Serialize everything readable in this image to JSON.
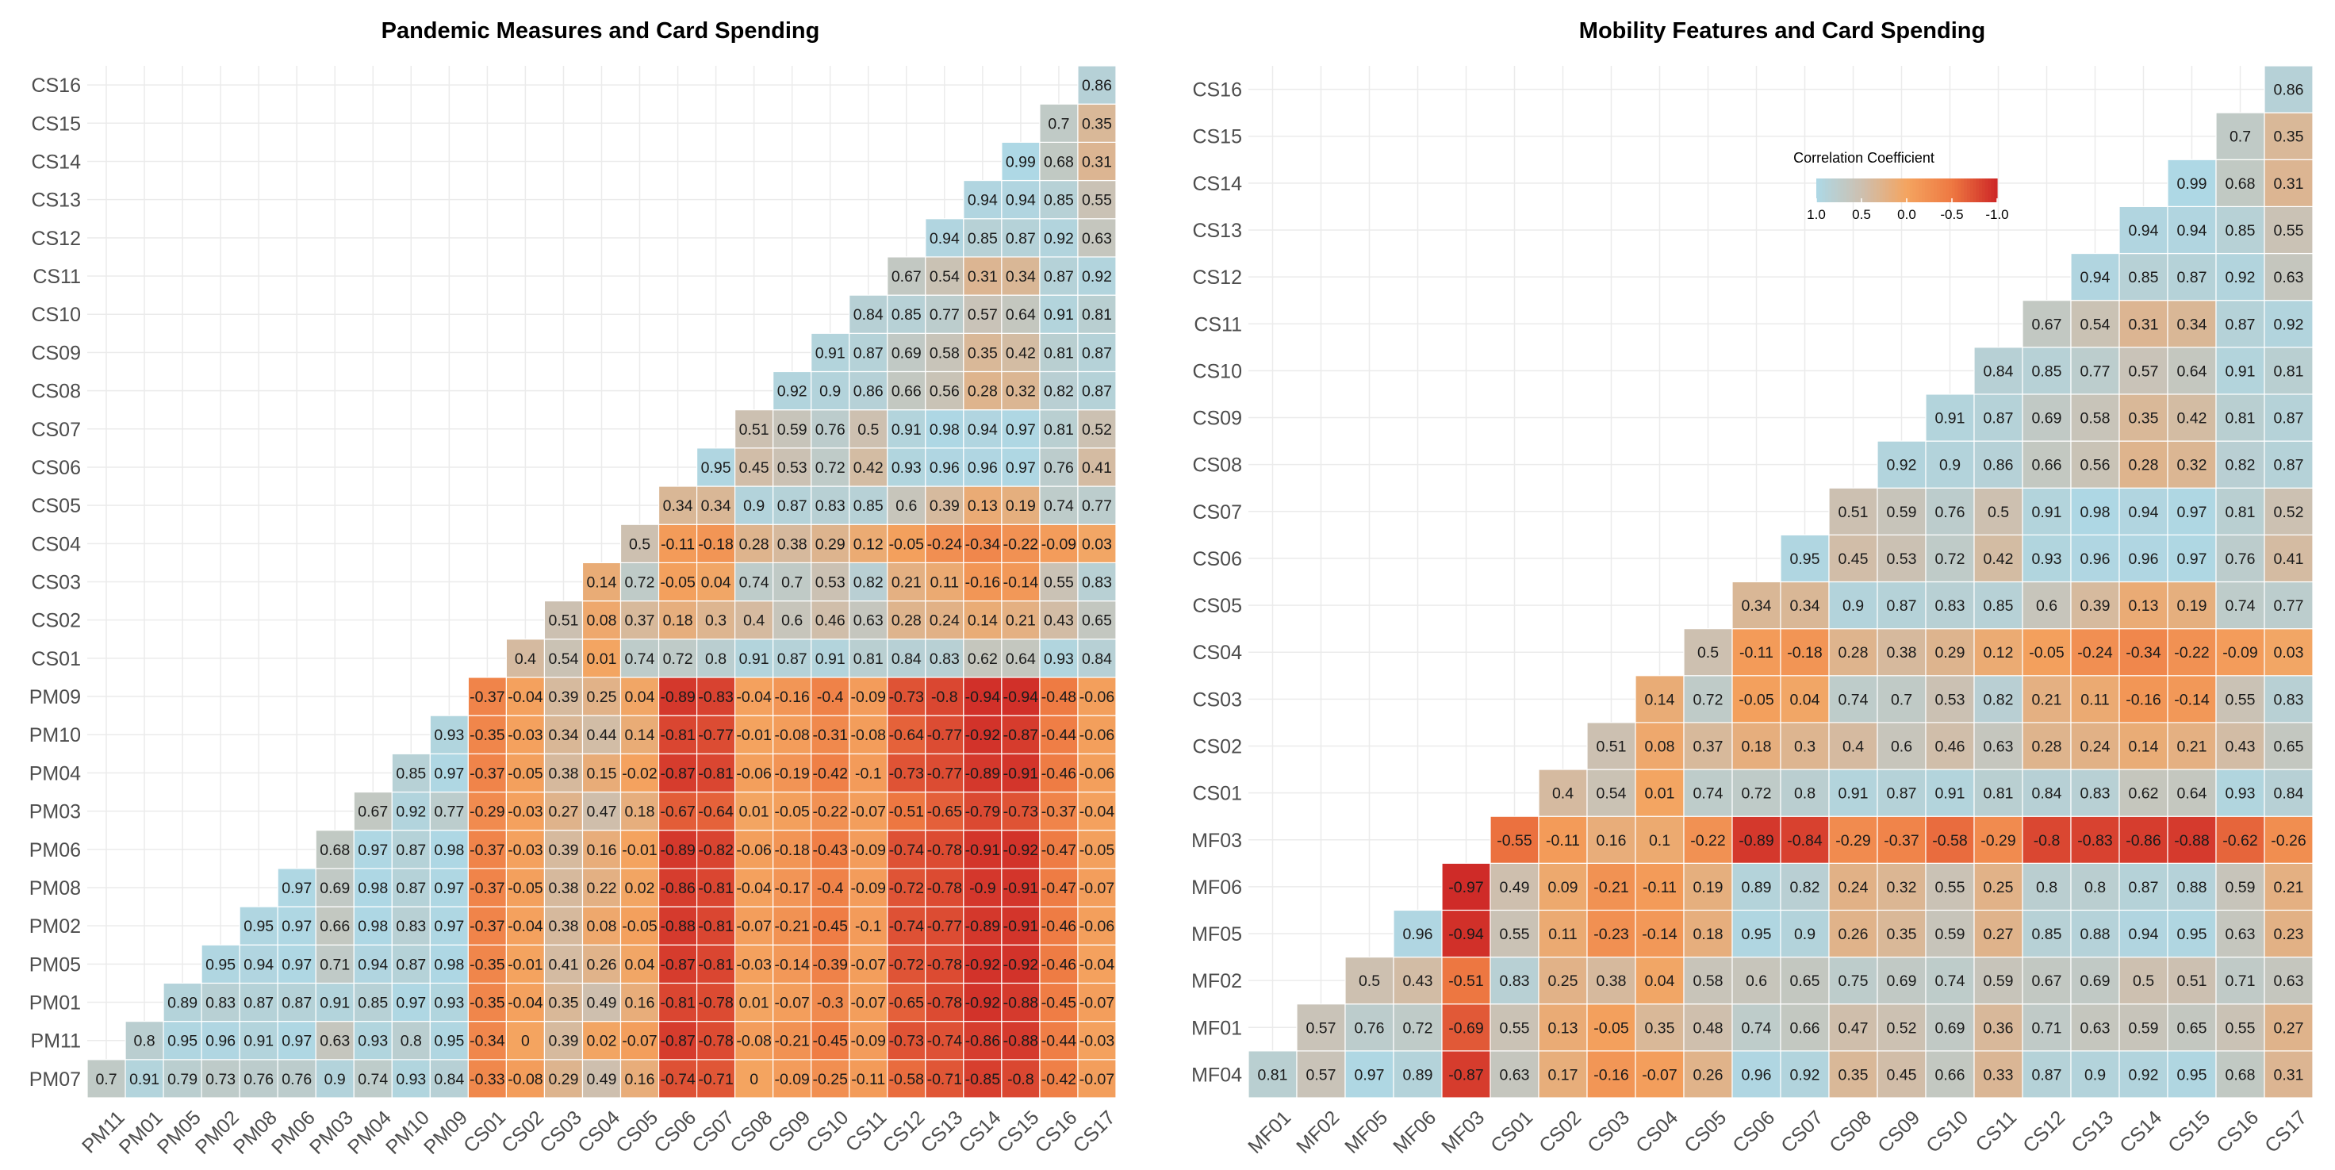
{
  "chart_data": [
    {
      "type": "heatmap",
      "title": "Pandemic Measures and Card Spending",
      "row_labels_bottom_to_top": [
        "PM07",
        "PM11",
        "PM01",
        "PM05",
        "PM02",
        "PM08",
        "PM06",
        "PM03",
        "PM04",
        "PM10",
        "PM09",
        "CS01",
        "CS02",
        "CS03",
        "CS04",
        "CS05",
        "CS06",
        "CS07",
        "CS08",
        "CS09",
        "CS10",
        "CS11",
        "CS12",
        "CS13",
        "CS14",
        "CS15",
        "CS16"
      ],
      "col_labels": [
        "PM11",
        "PM01",
        "PM05",
        "PM02",
        "PM08",
        "PM06",
        "PM03",
        "PM04",
        "PM10",
        "PM09",
        "CS01",
        "CS02",
        "CS03",
        "CS04",
        "CS05",
        "CS06",
        "CS07",
        "CS08",
        "CS09",
        "CS10",
        "CS11",
        "CS12",
        "CS13",
        "CS14",
        "CS15",
        "CS16",
        "CS17"
      ],
      "rows_bottom_to_top": [
        [
          "0.7",
          "0.91",
          "0.79",
          "0.73",
          "0.76",
          "0.76",
          "0.9",
          "0.74",
          "0.93",
          "0.84",
          "-0.33",
          "-0.08",
          "0.29",
          "0.49",
          "0.16",
          "-0.74",
          "-0.71",
          "0",
          "-0.09",
          "-0.25",
          "-0.11",
          "-0.58",
          "-0.71",
          "-0.85",
          "-0.8",
          "-0.42",
          "-0.07"
        ],
        [
          "0.8",
          "0.95",
          "0.96",
          "0.91",
          "0.97",
          "0.63",
          "0.93",
          "0.8",
          "0.95",
          "-0.34",
          "0",
          "0.39",
          "0.02",
          "-0.07",
          "-0.87",
          "-0.78",
          "-0.08",
          "-0.21",
          "-0.45",
          "-0.09",
          "-0.73",
          "-0.74",
          "-0.86",
          "-0.88",
          "-0.44",
          "-0.03"
        ],
        [
          "0.89",
          "0.83",
          "0.87",
          "0.87",
          "0.91",
          "0.85",
          "0.97",
          "0.93",
          "-0.35",
          "-0.04",
          "0.35",
          "0.49",
          "0.16",
          "-0.81",
          "-0.78",
          "0.01",
          "-0.07",
          "-0.3",
          "-0.07",
          "-0.65",
          "-0.78",
          "-0.92",
          "-0.88",
          "-0.45",
          "-0.07"
        ],
        [
          "0.95",
          "0.94",
          "0.97",
          "0.71",
          "0.94",
          "0.87",
          "0.98",
          "-0.35",
          "-0.01",
          "0.41",
          "0.26",
          "0.04",
          "-0.87",
          "-0.81",
          "-0.03",
          "-0.14",
          "-0.39",
          "-0.07",
          "-0.72",
          "-0.78",
          "-0.92",
          "-0.92",
          "-0.46",
          "-0.04"
        ],
        [
          "0.95",
          "0.97",
          "0.66",
          "0.98",
          "0.83",
          "0.97",
          "-0.37",
          "-0.04",
          "0.38",
          "0.08",
          "-0.05",
          "-0.88",
          "-0.81",
          "-0.07",
          "-0.21",
          "-0.45",
          "-0.1",
          "-0.74",
          "-0.77",
          "-0.89",
          "-0.91",
          "-0.46",
          "-0.06"
        ],
        [
          "0.97",
          "0.69",
          "0.98",
          "0.87",
          "0.97",
          "-0.37",
          "-0.05",
          "0.38",
          "0.22",
          "0.02",
          "-0.86",
          "-0.81",
          "-0.04",
          "-0.17",
          "-0.4",
          "-0.09",
          "-0.72",
          "-0.78",
          "-0.9",
          "-0.91",
          "-0.47",
          "-0.07"
        ],
        [
          "0.68",
          "0.97",
          "0.87",
          "0.98",
          "-0.37",
          "-0.03",
          "0.39",
          "0.16",
          "-0.01",
          "-0.89",
          "-0.82",
          "-0.06",
          "-0.18",
          "-0.43",
          "-0.09",
          "-0.74",
          "-0.78",
          "-0.91",
          "-0.92",
          "-0.47",
          "-0.05"
        ],
        [
          "0.67",
          "0.92",
          "0.77",
          "-0.29",
          "-0.03",
          "0.27",
          "0.47",
          "0.18",
          "-0.67",
          "-0.64",
          "0.01",
          "-0.05",
          "-0.22",
          "-0.07",
          "-0.51",
          "-0.65",
          "-0.79",
          "-0.73",
          "-0.37",
          "-0.04"
        ],
        [
          "0.85",
          "0.97",
          "-0.37",
          "-0.05",
          "0.38",
          "0.15",
          "-0.02",
          "-0.87",
          "-0.81",
          "-0.06",
          "-0.19",
          "-0.42",
          "-0.1",
          "-0.73",
          "-0.77",
          "-0.89",
          "-0.91",
          "-0.46",
          "-0.06"
        ],
        [
          "0.93",
          "-0.35",
          "-0.03",
          "0.34",
          "0.44",
          "0.14",
          "-0.81",
          "-0.77",
          "-0.01",
          "-0.08",
          "-0.31",
          "-0.08",
          "-0.64",
          "-0.77",
          "-0.92",
          "-0.87",
          "-0.44",
          "-0.06"
        ],
        [
          "-0.37",
          "-0.04",
          "0.39",
          "0.25",
          "0.04",
          "-0.89",
          "-0.83",
          "-0.04",
          "-0.16",
          "-0.4",
          "-0.09",
          "-0.73",
          "-0.8",
          "-0.94",
          "-0.94",
          "-0.48",
          "-0.06"
        ],
        [
          "0.4",
          "0.54",
          "0.01",
          "0.74",
          "0.72",
          "0.8",
          "0.91",
          "0.87",
          "0.91",
          "0.81",
          "0.84",
          "0.83",
          "0.62",
          "0.64",
          "0.93",
          "0.84"
        ],
        [
          "0.51",
          "0.08",
          "0.37",
          "0.18",
          "0.3",
          "0.4",
          "0.6",
          "0.46",
          "0.63",
          "0.28",
          "0.24",
          "0.14",
          "0.21",
          "0.43",
          "0.65"
        ],
        [
          "0.14",
          "0.72",
          "-0.05",
          "0.04",
          "0.74",
          "0.7",
          "0.53",
          "0.82",
          "0.21",
          "0.11",
          "-0.16",
          "-0.14",
          "0.55",
          "0.83"
        ],
        [
          "0.5",
          "-0.11",
          "-0.18",
          "0.28",
          "0.38",
          "0.29",
          "0.12",
          "-0.05",
          "-0.24",
          "-0.34",
          "-0.22",
          "-0.09",
          "0.03"
        ],
        [
          "0.34",
          "0.34",
          "0.9",
          "0.87",
          "0.83",
          "0.85",
          "0.6",
          "0.39",
          "0.13",
          "0.19",
          "0.74",
          "0.77"
        ],
        [
          "0.95",
          "0.45",
          "0.53",
          "0.72",
          "0.42",
          "0.93",
          "0.96",
          "0.96",
          "0.97",
          "0.76",
          "0.41"
        ],
        [
          "0.51",
          "0.59",
          "0.76",
          "0.5",
          "0.91",
          "0.98",
          "0.94",
          "0.97",
          "0.81",
          "0.52"
        ],
        [
          "0.92",
          "0.9",
          "0.86",
          "0.66",
          "0.56",
          "0.28",
          "0.32",
          "0.82",
          "0.87"
        ],
        [
          "0.91",
          "0.87",
          "0.69",
          "0.58",
          "0.35",
          "0.42",
          "0.81",
          "0.87"
        ],
        [
          "0.84",
          "0.85",
          "0.77",
          "0.57",
          "0.64",
          "0.91",
          "0.81"
        ],
        [
          "0.67",
          "0.54",
          "0.31",
          "0.34",
          "0.87",
          "0.92"
        ],
        [
          "0.94",
          "0.85",
          "0.87",
          "0.92",
          "0.63"
        ],
        [
          "0.94",
          "0.94",
          "0.85",
          "0.55"
        ],
        [
          "0.99",
          "0.68",
          "0.31"
        ],
        [
          "0.7",
          "0.35"
        ],
        [
          "0.86"
        ]
      ]
    },
    {
      "type": "heatmap",
      "title": "Mobility Features and Card Spending",
      "row_labels_bottom_to_top": [
        "MF04",
        "MF01",
        "MF02",
        "MF05",
        "MF06",
        "MF03",
        "CS01",
        "CS02",
        "CS03",
        "CS04",
        "CS05",
        "CS06",
        "CS07",
        "CS08",
        "CS09",
        "CS10",
        "CS11",
        "CS12",
        "CS13",
        "CS14",
        "CS15",
        "CS16"
      ],
      "col_labels": [
        "MF01",
        "MF02",
        "MF05",
        "MF06",
        "MF03",
        "CS01",
        "CS02",
        "CS03",
        "CS04",
        "CS05",
        "CS06",
        "CS07",
        "CS08",
        "CS09",
        "CS10",
        "CS11",
        "CS12",
        "CS13",
        "CS14",
        "CS15",
        "CS16",
        "CS17"
      ],
      "rows_bottom_to_top": [
        [
          "0.81",
          "0.57",
          "0.97",
          "0.89",
          "-0.87",
          "0.63",
          "0.17",
          "-0.16",
          "-0.07",
          "0.26",
          "0.96",
          "0.92",
          "0.35",
          "0.45",
          "0.66",
          "0.33",
          "0.87",
          "0.9",
          "0.92",
          "0.95",
          "0.68",
          "0.31"
        ],
        [
          "0.57",
          "0.76",
          "0.72",
          "-0.69",
          "0.55",
          "0.13",
          "-0.05",
          "0.35",
          "0.48",
          "0.74",
          "0.66",
          "0.47",
          "0.52",
          "0.69",
          "0.36",
          "0.71",
          "0.63",
          "0.59",
          "0.65",
          "0.55",
          "0.27"
        ],
        [
          "0.5",
          "0.43",
          "-0.51",
          "0.83",
          "0.25",
          "0.38",
          "0.04",
          "0.58",
          "0.6",
          "0.65",
          "0.75",
          "0.69",
          "0.74",
          "0.59",
          "0.67",
          "0.69",
          "0.5",
          "0.51",
          "0.71",
          "0.63"
        ],
        [
          "0.96",
          "-0.94",
          "0.55",
          "0.11",
          "-0.23",
          "-0.14",
          "0.18",
          "0.95",
          "0.9",
          "0.26",
          "0.35",
          "0.59",
          "0.27",
          "0.85",
          "0.88",
          "0.94",
          "0.95",
          "0.63",
          "0.23"
        ],
        [
          "-0.97",
          "0.49",
          "0.09",
          "-0.21",
          "-0.11",
          "0.19",
          "0.89",
          "0.82",
          "0.24",
          "0.32",
          "0.55",
          "0.25",
          "0.8",
          "0.8",
          "0.87",
          "0.88",
          "0.59",
          "0.21"
        ],
        [
          "-0.55",
          "-0.11",
          "0.16",
          "0.1",
          "-0.22",
          "-0.89",
          "-0.84",
          "-0.29",
          "-0.37",
          "-0.58",
          "-0.29",
          "-0.8",
          "-0.83",
          "-0.86",
          "-0.88",
          "-0.62",
          "-0.26"
        ],
        [
          "0.4",
          "0.54",
          "0.01",
          "0.74",
          "0.72",
          "0.8",
          "0.91",
          "0.87",
          "0.91",
          "0.81",
          "0.84",
          "0.83",
          "0.62",
          "0.64",
          "0.93",
          "0.84"
        ],
        [
          "0.51",
          "0.08",
          "0.37",
          "0.18",
          "0.3",
          "0.4",
          "0.6",
          "0.46",
          "0.63",
          "0.28",
          "0.24",
          "0.14",
          "0.21",
          "0.43",
          "0.65"
        ],
        [
          "0.14",
          "0.72",
          "-0.05",
          "0.04",
          "0.74",
          "0.7",
          "0.53",
          "0.82",
          "0.21",
          "0.11",
          "-0.16",
          "-0.14",
          "0.55",
          "0.83"
        ],
        [
          "0.5",
          "-0.11",
          "-0.18",
          "0.28",
          "0.38",
          "0.29",
          "0.12",
          "-0.05",
          "-0.24",
          "-0.34",
          "-0.22",
          "-0.09",
          "0.03"
        ],
        [
          "0.34",
          "0.34",
          "0.9",
          "0.87",
          "0.83",
          "0.85",
          "0.6",
          "0.39",
          "0.13",
          "0.19",
          "0.74",
          "0.77"
        ],
        [
          "0.95",
          "0.45",
          "0.53",
          "0.72",
          "0.42",
          "0.93",
          "0.96",
          "0.96",
          "0.97",
          "0.76",
          "0.41"
        ],
        [
          "0.51",
          "0.59",
          "0.76",
          "0.5",
          "0.91",
          "0.98",
          "0.94",
          "0.97",
          "0.81",
          "0.52"
        ],
        [
          "0.92",
          "0.9",
          "0.86",
          "0.66",
          "0.56",
          "0.28",
          "0.32",
          "0.82",
          "0.87"
        ],
        [
          "0.91",
          "0.87",
          "0.69",
          "0.58",
          "0.35",
          "0.42",
          "0.81",
          "0.87"
        ],
        [
          "0.84",
          "0.85",
          "0.77",
          "0.57",
          "0.64",
          "0.91",
          "0.81"
        ],
        [
          "0.67",
          "0.54",
          "0.31",
          "0.34",
          "0.87",
          "0.92"
        ],
        [
          "0.94",
          "0.85",
          "0.87",
          "0.92",
          "0.63"
        ],
        [
          "0.94",
          "0.94",
          "0.85",
          "0.55"
        ],
        [
          "0.99",
          "0.68",
          "0.31"
        ],
        [
          "0.7",
          "0.35"
        ],
        [
          "0.86"
        ]
      ]
    }
  ],
  "legend": {
    "title": "Correlation Coefficient",
    "ticks": [
      {
        "label": "1.0",
        "value": 1.0
      },
      {
        "label": "0.5",
        "value": 0.5
      },
      {
        "label": "0.0",
        "value": 0.0
      },
      {
        "label": "-0.5",
        "value": -0.5
      },
      {
        "label": "-1.0",
        "value": -1.0
      }
    ],
    "colors": {
      "high": "#add8e6",
      "mid_high": "#cdc0b0",
      "mid": "#f4a460",
      "mid_low": "#ee7942",
      "low": "#cd2626"
    },
    "placement": "inside-top-right"
  }
}
